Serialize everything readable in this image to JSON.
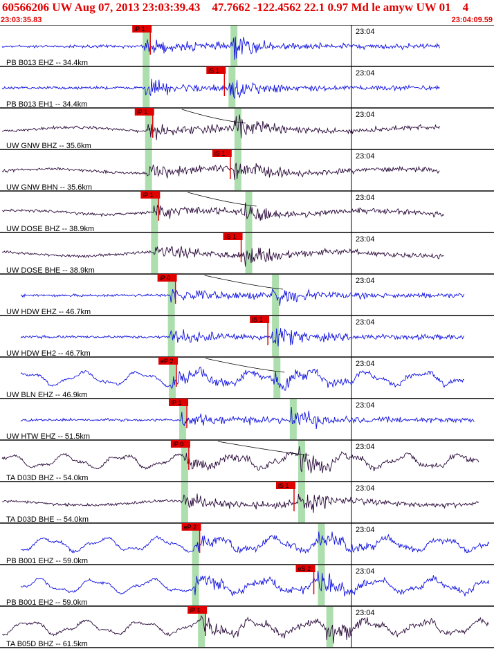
{
  "header": {
    "title": "60566206 UW Aug 07, 2013 23:03:39.43    47.7662 -122.4562 22.1 0.97 Md le amyw UW 01    4",
    "start_time": "23:03:35.83",
    "end_time": "23:04:09.59"
  },
  "chart_data": {
    "type": "line",
    "time_range": [
      "23:03:35.83",
      "23:04:09.59"
    ],
    "tick_label": "23:04",
    "colors": {
      "trace_high": "#1010e0",
      "trace_low": "#2a0a3a",
      "pick": "#e00000",
      "window": "#9fd89f",
      "moveout": "#000000"
    },
    "traces": [
      {
        "label": "PB B013 EHZ -- 34.4km",
        "color": "trace_high",
        "pick": "iP 1",
        "p_frac": 0.293,
        "s_frac": 0.447,
        "env_end": 0.89
      },
      {
        "label": "PB B013 EH1 -- 34.4km",
        "color": "trace_high",
        "pick": "iS 1",
        "p_frac": 0.293,
        "s_frac": 0.443,
        "env_end": 0.89
      },
      {
        "label": "UW GNW BHZ -- 35.6km",
        "color": "trace_low",
        "pick": "iP 1",
        "p_frac": 0.298,
        "s_frac": 0.455,
        "env_end": 0.89
      },
      {
        "label": "UW GNW BHN -- 35.6km",
        "color": "trace_low",
        "pick": "iS 1",
        "p_frac": 0.298,
        "s_frac": 0.455,
        "env_end": 0.89
      },
      {
        "label": "UW DOSE BHZ -- 38.9km",
        "color": "trace_low",
        "pick": "iP 1",
        "p_frac": 0.31,
        "s_frac": 0.477,
        "env_end": 0.9
      },
      {
        "label": "UW DOSE BHE -- 38.9km",
        "color": "trace_low",
        "pick": "iS 1",
        "p_frac": 0.31,
        "s_frac": 0.477,
        "env_end": 0.9
      },
      {
        "label": "UW HDW EHZ -- 46.7km",
        "color": "trace_high",
        "pick": "iP 0",
        "p_frac": 0.344,
        "s_frac": 0.531,
        "env_end": 0.94
      },
      {
        "label": "UW HDW EH2 -- 46.7km",
        "color": "trace_high",
        "pick": "iS 1",
        "p_frac": 0.344,
        "s_frac": 0.531,
        "env_end": 0.94
      },
      {
        "label": "UW BLN EHZ -- 46.9km",
        "color": "trace_high",
        "pick": "eP 2",
        "p_frac": 0.346,
        "s_frac": 0.534,
        "env_end": 0.94
      },
      {
        "label": "UW HTW EHZ -- 51.5km",
        "color": "trace_high",
        "pick": "iP 1",
        "p_frac": 0.367,
        "s_frac": 0.567,
        "env_end": 0.96
      },
      {
        "label": "TA D03D BHZ -- 54.0km",
        "color": "trace_low",
        "pick": "iP 0",
        "p_frac": 0.371,
        "s_frac": 0.584,
        "env_end": 0.97
      },
      {
        "label": "TA D03D BHE -- 54.0km",
        "color": "trace_low",
        "pick": "iS 1",
        "p_frac": 0.371,
        "s_frac": 0.584,
        "env_end": 0.97
      },
      {
        "label": "PB B001 EHZ -- 59.0km",
        "color": "trace_high",
        "pick": "eP 2",
        "p_frac": 0.393,
        "s_frac": 0.624,
        "env_end": 0.99
      },
      {
        "label": "PB B001 EH2 -- 59.0km",
        "color": "trace_high",
        "pick": "eS 2",
        "p_frac": 0.393,
        "s_frac": 0.624,
        "env_end": 0.99
      },
      {
        "label": "TA B05D BHZ -- 61.5km",
        "color": "trace_low",
        "pick": "iP 1",
        "p_frac": 0.405,
        "s_frac": 0.641,
        "env_end": 0.99
      }
    ]
  }
}
